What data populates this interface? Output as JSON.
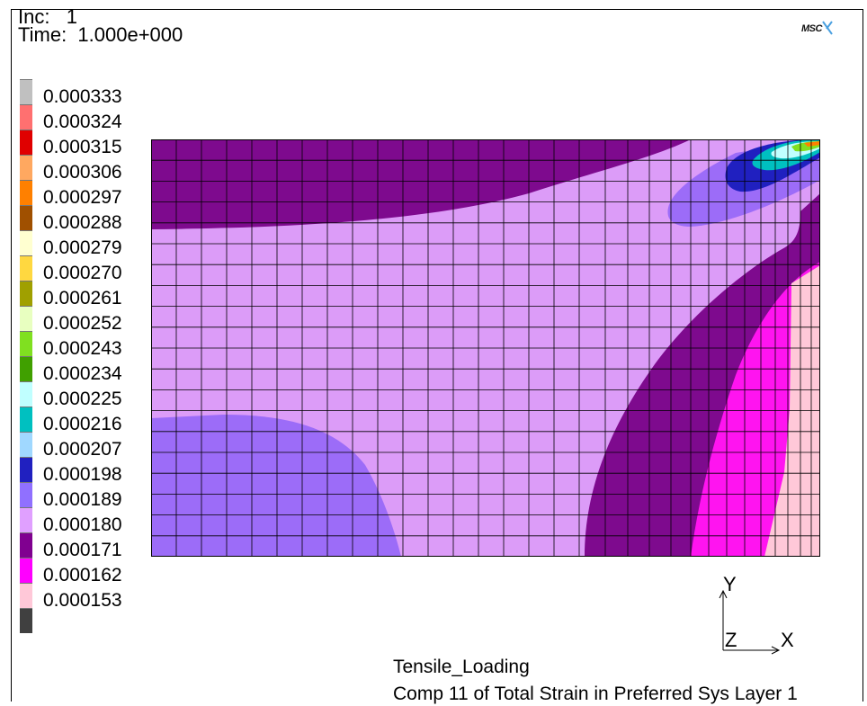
{
  "header": {
    "inc_label": "Inc:   1",
    "time_label": "Time:  1.000e+000"
  },
  "logo": {
    "text": "MSC"
  },
  "legend": {
    "values": [
      "0.000333",
      "0.000324",
      "0.000315",
      "0.000306",
      "0.000297",
      "0.000288",
      "0.000279",
      "0.000270",
      "0.000261",
      "0.000252",
      "0.000243",
      "0.000234",
      "0.000225",
      "0.000216",
      "0.000207",
      "0.000198",
      "0.000189",
      "0.000180",
      "0.000171",
      "0.000162",
      "0.000153"
    ],
    "colors": [
      "#c0c0c0",
      "#ff7070",
      "#e00000",
      "#ffa860",
      "#ff8000",
      "#a05000",
      "#ffffd0",
      "#ffd840",
      "#a0a000",
      "#e8ffc0",
      "#80e020",
      "#40a000",
      "#c0ffff",
      "#00c0c0",
      "#a0d8ff",
      "#2020c0",
      "#9070ff",
      "#e0a0ff",
      "#800090",
      "#ff00ff",
      "#ffc8d8",
      "#404040"
    ]
  },
  "plot_colors": {
    "light_violet": "#dc9cf8",
    "dark_purple": "#7e0a8e",
    "periwinkle": "#9c6cf8",
    "magenta": "#ff14f0",
    "pink": "#ffc8d8",
    "blue": "#2020c0",
    "mesh": "#000000"
  },
  "axes": {
    "y": "Y",
    "z": "Z",
    "x": "X"
  },
  "footer": {
    "loadcase": "Tensile_Loading",
    "result": "Comp 11 of Total Strain in Preferred Sys Layer 1"
  }
}
